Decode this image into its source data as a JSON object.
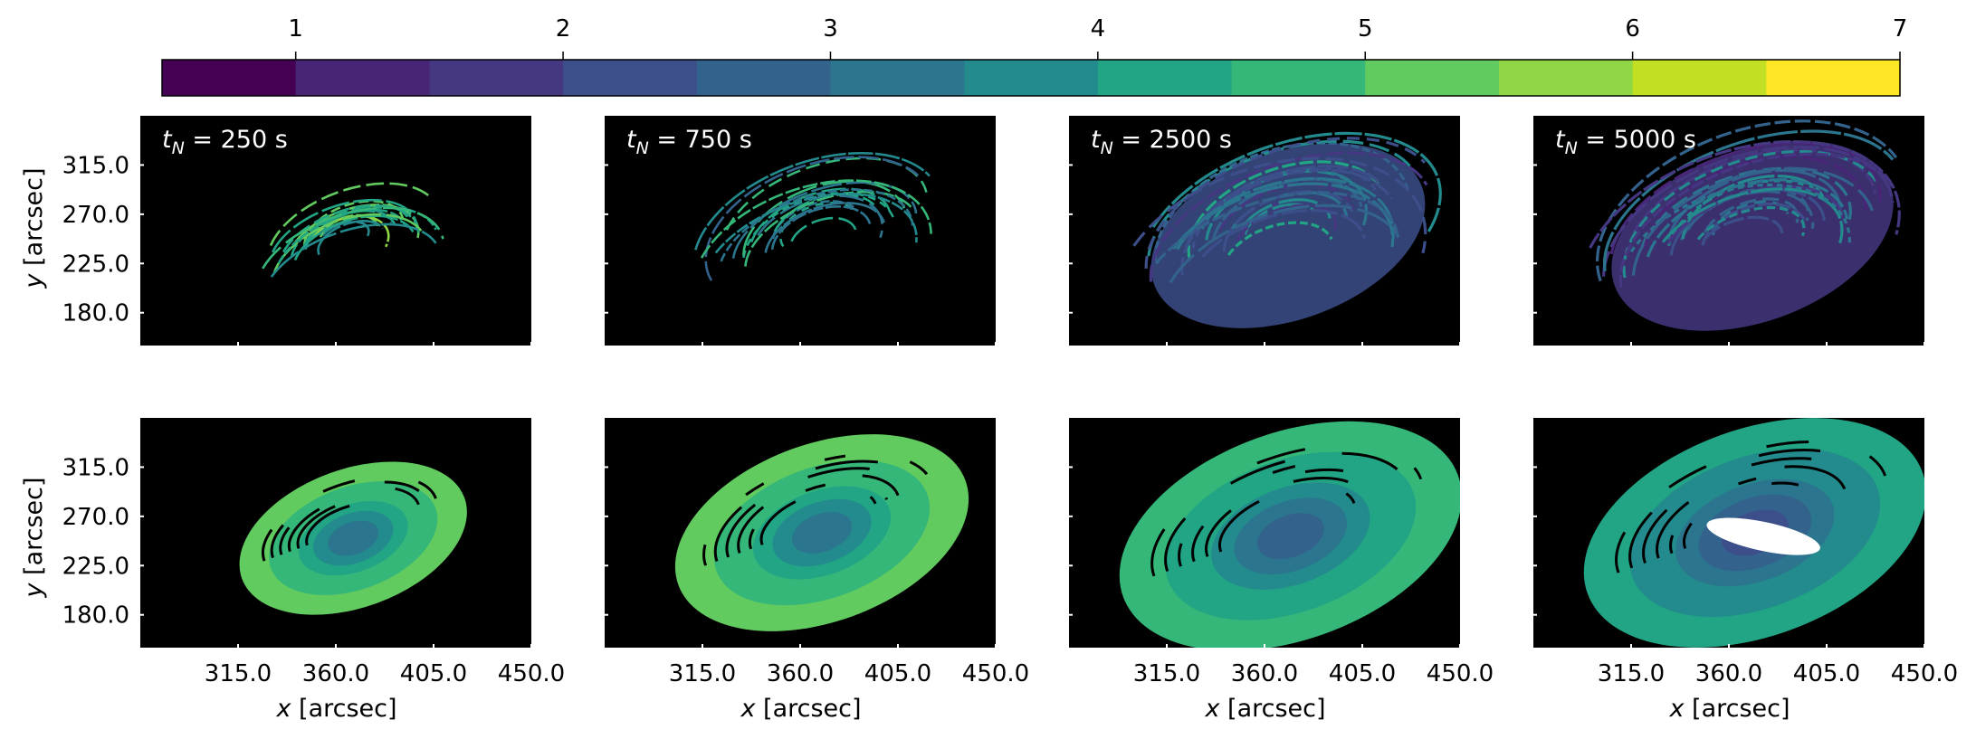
{
  "colorbar": {
    "ticks": [
      "1",
      "2",
      "3",
      "4",
      "5",
      "6",
      "7"
    ],
    "range": [
      0.5,
      7.0
    ],
    "levels": [
      0.5,
      1.0,
      1.5,
      2.0,
      2.5,
      3.0,
      3.5,
      4.0,
      4.5,
      5.0,
      5.5,
      6.0,
      6.5,
      7.0
    ],
    "colors": [
      "#440154",
      "#482576",
      "#453781",
      "#3c4f8a",
      "#33638d",
      "#2b758e",
      "#238a8d",
      "#21a585",
      "#35b779",
      "#62cb5f",
      "#8fd744",
      "#c2df23",
      "#fde725"
    ]
  },
  "axes_text": {
    "ylabel_var": "y",
    "ylabel_unit": " [arcsec]",
    "xlabel_var": "x",
    "xlabel_unit": " [arcsec]"
  },
  "chart_data": [
    {
      "type": "heatmap",
      "row": 1,
      "col": 1,
      "title": "t_N = 250 s",
      "title_var": "t",
      "title_sub": "N",
      "title_rest": " = 250 s",
      "xticks": [
        "315.0",
        "360.0",
        "405.0",
        "450.0"
      ],
      "yticks": [
        "315.0",
        "270.0",
        "225.0",
        "180.0"
      ],
      "xlim": [
        270,
        450
      ],
      "ylim": [
        150,
        360
      ],
      "pattern": "sparse-loops",
      "scale": 0.72,
      "cx": 368,
      "cy": 250,
      "level": 4.4,
      "background": "#000000"
    },
    {
      "type": "heatmap",
      "row": 1,
      "col": 2,
      "title": "t_N = 750 s",
      "title_var": "t",
      "title_sub": "N",
      "title_rest": " = 750 s",
      "xticks": [
        "315.0",
        "360.0",
        "405.0",
        "450.0"
      ],
      "yticks": [
        "315.0",
        "270.0",
        "225.0",
        "180.0"
      ],
      "xlim": [
        270,
        450
      ],
      "ylim": [
        150,
        360
      ],
      "pattern": "sparse-loops",
      "scale": 0.95,
      "cx": 370,
      "cy": 255,
      "level": 3.6,
      "background": "#000000"
    },
    {
      "type": "heatmap",
      "row": 1,
      "col": 3,
      "title": "t_N = 2500 s",
      "title_var": "t",
      "title_sub": "N",
      "title_rest": " = 2500 s",
      "xticks": [
        "315.0",
        "360.0",
        "405.0",
        "450.0"
      ],
      "yticks": [
        "315.0",
        "270.0",
        "225.0",
        "180.0"
      ],
      "xlim": [
        270,
        450
      ],
      "ylim": [
        150,
        360
      ],
      "pattern": "dense-loops",
      "scale": 1.05,
      "cx": 370,
      "cy": 255,
      "level": 2.8,
      "background": "#000000"
    },
    {
      "type": "heatmap",
      "row": 1,
      "col": 4,
      "title": "t_N = 5000 s",
      "title_var": "t",
      "title_sub": "N",
      "title_rest": " = 5000 s",
      "xticks": [
        "315.0",
        "360.0",
        "405.0",
        "450.0"
      ],
      "yticks": [
        "315.0",
        "270.0",
        "225.0",
        "180.0"
      ],
      "xlim": [
        270,
        450
      ],
      "ylim": [
        150,
        360
      ],
      "pattern": "dense-loops",
      "scale": 1.08,
      "cx": 370,
      "cy": 255,
      "level": 2.4,
      "background": "#000000"
    },
    {
      "type": "heatmap",
      "row": 2,
      "col": 1,
      "title": "",
      "xticks": [
        "315.0",
        "360.0",
        "405.0",
        "450.0"
      ],
      "yticks": [
        "315.0",
        "270.0",
        "225.0",
        "180.0"
      ],
      "xlim": [
        270,
        450
      ],
      "ylim": [
        150,
        360
      ],
      "pattern": "filled",
      "scale": 0.72,
      "cx": 368,
      "cy": 250,
      "level": 4.0,
      "background": "#000000"
    },
    {
      "type": "heatmap",
      "row": 2,
      "col": 2,
      "title": "",
      "xticks": [
        "315.0",
        "360.0",
        "405.0",
        "450.0"
      ],
      "yticks": [
        "315.0",
        "270.0",
        "225.0",
        "180.0"
      ],
      "xlim": [
        270,
        450
      ],
      "ylim": [
        150,
        360
      ],
      "pattern": "filled",
      "scale": 0.95,
      "cx": 370,
      "cy": 255,
      "level": 4.0,
      "background": "#000000"
    },
    {
      "type": "heatmap",
      "row": 2,
      "col": 3,
      "title": "",
      "xticks": [
        "315.0",
        "360.0",
        "405.0",
        "450.0"
      ],
      "yticks": [
        "315.0",
        "270.0",
        "225.0",
        "180.0"
      ],
      "xlim": [
        270,
        450
      ],
      "ylim": [
        150,
        360
      ],
      "pattern": "filled",
      "scale": 1.12,
      "cx": 372,
      "cy": 252,
      "level": 3.5,
      "background": "#000000"
    },
    {
      "type": "heatmap",
      "row": 2,
      "col": 4,
      "title": "",
      "xticks": [
        "315.0",
        "360.0",
        "405.0",
        "450.0"
      ],
      "yticks": [
        "315.0",
        "270.0",
        "225.0",
        "180.0"
      ],
      "xlim": [
        270,
        450
      ],
      "ylim": [
        150,
        360
      ],
      "pattern": "filled-hole",
      "scale": 1.12,
      "cx": 372,
      "cy": 255,
      "level": 3.0,
      "background": "#000000"
    }
  ]
}
